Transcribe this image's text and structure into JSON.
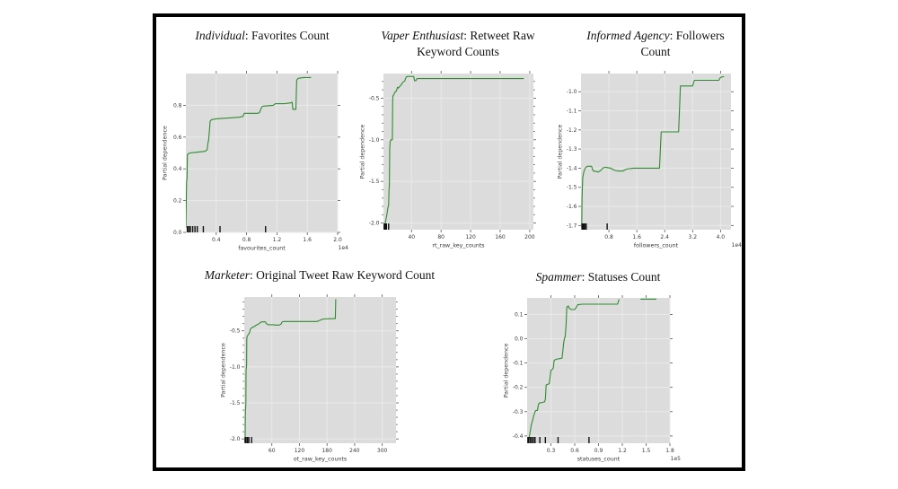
{
  "styles": {
    "plot_bg": "#dcdcdc",
    "grid_color": "#eaeaea",
    "line_color": "#2f8b2f",
    "tick_color": "#555555",
    "rug_color": "#111111"
  },
  "chart_data": [
    {
      "type": "line",
      "id": "individual-favorites-count",
      "title_italic": "Individual",
      "title_rest": ": Favorites Count",
      "title_line2": "",
      "xlabel": "favourites_count",
      "ylabel": "Partial dependence",
      "x_offset": "1e4",
      "xlim": [
        0,
        2.0
      ],
      "ylim": [
        0,
        1.0
      ],
      "xticks": [
        "0.4",
        "0.8",
        "1.2",
        "1.6",
        "2.0"
      ],
      "yticks": [
        "0.0",
        "0.2",
        "0.4",
        "0.6",
        "0.8"
      ],
      "grid": true,
      "legend": null,
      "points": [
        [
          0,
          0.03
        ],
        [
          0.01,
          0.32
        ],
        [
          0.015,
          0.34
        ],
        [
          0.02,
          0.49
        ],
        [
          0.05,
          0.5
        ],
        [
          0.15,
          0.505
        ],
        [
          0.25,
          0.51
        ],
        [
          0.28,
          0.52
        ],
        [
          0.29,
          0.56
        ],
        [
          0.3,
          0.58
        ],
        [
          0.31,
          0.64
        ],
        [
          0.32,
          0.7
        ],
        [
          0.34,
          0.71
        ],
        [
          0.4,
          0.715
        ],
        [
          0.55,
          0.72
        ],
        [
          0.7,
          0.725
        ],
        [
          0.75,
          0.73
        ],
        [
          0.77,
          0.75
        ],
        [
          0.95,
          0.75
        ],
        [
          0.97,
          0.755
        ],
        [
          1.0,
          0.79
        ],
        [
          1.02,
          0.795
        ],
        [
          1.15,
          0.8
        ],
        [
          1.18,
          0.81
        ],
        [
          1.3,
          0.81
        ],
        [
          1.38,
          0.815
        ],
        [
          1.4,
          0.82
        ],
        [
          1.41,
          0.775
        ],
        [
          1.45,
          0.775
        ],
        [
          1.46,
          0.96
        ],
        [
          1.48,
          0.97
        ],
        [
          1.55,
          0.975
        ],
        [
          1.65,
          0.975
        ]
      ],
      "segments": [],
      "rug": [
        0.02,
        0.04,
        0.06,
        0.09,
        0.12,
        0.15,
        0.23,
        0.45,
        1.05
      ]
    },
    {
      "type": "line",
      "id": "vaper-enthusiast-rt-raw-keyword",
      "title_italic": "Vaper Enthusiast",
      "title_rest": ": Retweet Raw",
      "title_line2": "Keyword Counts",
      "xlabel": "rt_raw_key_counts",
      "ylabel": "Partial dependence",
      "x_offset": "",
      "xlim": [
        2,
        205
      ],
      "ylim": [
        -2.08,
        -0.205
      ],
      "xticks": [
        "40",
        "80",
        "120",
        "160",
        "200"
      ],
      "yticks": [
        "-0.5",
        "-1.0",
        "-1.5",
        "-2.0"
      ],
      "y_minor_step": 0.1,
      "grid": true,
      "legend": null,
      "points": [
        [
          3,
          -2.06
        ],
        [
          4,
          -2.02
        ],
        [
          5,
          -1.97
        ],
        [
          6,
          -1.93
        ],
        [
          7,
          -1.88
        ],
        [
          8,
          -1.82
        ],
        [
          9,
          -1.78
        ],
        [
          9.5,
          -1.6
        ],
        [
          10,
          -1.55
        ],
        [
          10.5,
          -1.1
        ],
        [
          11,
          -1.03
        ],
        [
          12,
          -1.0
        ],
        [
          14,
          -1.0
        ],
        [
          14.5,
          -0.52
        ],
        [
          15,
          -0.47
        ],
        [
          16,
          -0.46
        ],
        [
          17,
          -0.44
        ],
        [
          18,
          -0.42
        ],
        [
          19,
          -0.42
        ],
        [
          20,
          -0.4
        ],
        [
          21,
          -0.37
        ],
        [
          22,
          -0.38
        ],
        [
          24,
          -0.36
        ],
        [
          26,
          -0.34
        ],
        [
          27,
          -0.33
        ],
        [
          28,
          -0.31
        ],
        [
          30,
          -0.3
        ],
        [
          31,
          -0.29
        ],
        [
          32,
          -0.26
        ],
        [
          33,
          -0.245
        ],
        [
          35,
          -0.24
        ],
        [
          43,
          -0.24
        ],
        [
          44,
          -0.29
        ],
        [
          46,
          -0.29
        ],
        [
          47,
          -0.27
        ],
        [
          48,
          -0.265
        ],
        [
          192,
          -0.265
        ]
      ],
      "segments": [],
      "rug": [
        3,
        4,
        5,
        6,
        9
      ]
    },
    {
      "type": "line",
      "id": "informed-agency-followers-count",
      "title_italic": "Informed Agency",
      "title_rest": ": Followers",
      "title_line2": "Count",
      "xlabel": "followers_count",
      "ylabel": "Partial dependence",
      "x_offset": "1e4",
      "xlim": [
        0,
        4.3
      ],
      "ylim": [
        -1.722,
        -0.905
      ],
      "xticks": [
        "0.8",
        "1.6",
        "2.4",
        "3.2",
        "4.0"
      ],
      "yticks": [
        "-1.0",
        "-1.1",
        "-1.2",
        "-1.3",
        "-1.4",
        "-1.5",
        "-1.6",
        "-1.7"
      ],
      "grid": true,
      "legend": null,
      "points": [
        [
          0.02,
          -1.71
        ],
        [
          0.03,
          -1.55
        ],
        [
          0.05,
          -1.45
        ],
        [
          0.08,
          -1.42
        ],
        [
          0.12,
          -1.4
        ],
        [
          0.18,
          -1.39
        ],
        [
          0.3,
          -1.39
        ],
        [
          0.35,
          -1.415
        ],
        [
          0.5,
          -1.42
        ],
        [
          0.58,
          -1.41
        ],
        [
          0.62,
          -1.4
        ],
        [
          0.7,
          -1.395
        ],
        [
          0.85,
          -1.4
        ],
        [
          0.95,
          -1.41
        ],
        [
          1.05,
          -1.415
        ],
        [
          1.2,
          -1.415
        ],
        [
          1.3,
          -1.405
        ],
        [
          1.5,
          -1.4
        ],
        [
          2.25,
          -1.4
        ],
        [
          2.3,
          -1.21
        ],
        [
          2.8,
          -1.21
        ],
        [
          2.85,
          -0.97
        ],
        [
          3.2,
          -0.97
        ],
        [
          3.25,
          -0.94
        ],
        [
          3.95,
          -0.94
        ],
        [
          4.0,
          -0.925
        ],
        [
          4.1,
          -0.92
        ]
      ],
      "segments": [],
      "rug": [
        0.03,
        0.05,
        0.08,
        0.11,
        0.15,
        0.75
      ]
    },
    {
      "type": "line",
      "id": "marketer-ot-raw-keyword-count",
      "title_italic": "Marketer",
      "title_rest": ": Original Tweet Raw Keyword Count",
      "title_line2": "",
      "xlabel": "ot_raw_key_counts",
      "ylabel": "Partial dependence",
      "x_offset": "",
      "xlim": [
        0,
        330
      ],
      "ylim": [
        -2.06,
        -0.03
      ],
      "xticks": [
        "60",
        "120",
        "180",
        "240",
        "300"
      ],
      "yticks": [
        "-0.5",
        "-1.0",
        "-1.5",
        "-2.0"
      ],
      "y_minor_step": 0.1,
      "grid": true,
      "legend": null,
      "points": [
        [
          1,
          -2.04
        ],
        [
          2,
          -2.0
        ],
        [
          2.5,
          -1.62
        ],
        [
          3,
          -1.58
        ],
        [
          3.5,
          -1.52
        ],
        [
          4,
          -1.05
        ],
        [
          5,
          -0.98
        ],
        [
          5.5,
          -0.62
        ],
        [
          6,
          -0.58
        ],
        [
          8,
          -0.56
        ],
        [
          10,
          -0.54
        ],
        [
          12,
          -0.52
        ],
        [
          13,
          -0.48
        ],
        [
          14,
          -0.47
        ],
        [
          16,
          -0.46
        ],
        [
          18,
          -0.45
        ],
        [
          22,
          -0.44
        ],
        [
          26,
          -0.42
        ],
        [
          30,
          -0.41
        ],
        [
          33,
          -0.395
        ],
        [
          36,
          -0.38
        ],
        [
          40,
          -0.375
        ],
        [
          46,
          -0.375
        ],
        [
          48,
          -0.4
        ],
        [
          52,
          -0.415
        ],
        [
          62,
          -0.415
        ],
        [
          70,
          -0.42
        ],
        [
          76,
          -0.42
        ],
        [
          80,
          -0.405
        ],
        [
          82,
          -0.38
        ],
        [
          85,
          -0.37
        ],
        [
          158,
          -0.37
        ],
        [
          162,
          -0.36
        ],
        [
          168,
          -0.345
        ],
        [
          172,
          -0.335
        ],
        [
          196,
          -0.33
        ],
        [
          198,
          -0.33
        ],
        [
          199,
          -0.06
        ]
      ],
      "segments": [],
      "rug": [
        2,
        4,
        7,
        10,
        16
      ]
    },
    {
      "type": "line",
      "id": "spammer-statuses-count",
      "title_italic": "Spammer",
      "title_rest": ": Statuses Count",
      "title_line2": "",
      "xlabel": "statuses_count",
      "ylabel": "Partial dependence",
      "x_offset": "1e5",
      "xlim": [
        0,
        1.8
      ],
      "ylim": [
        -0.43,
        0.168
      ],
      "xticks": [
        "0.3",
        "0.6",
        "0.9",
        "1.2",
        "1.5",
        "1.8"
      ],
      "yticks": [
        "0.1",
        "0.0",
        "-0.1",
        "-0.2",
        "-0.3",
        "-0.4"
      ],
      "grid": true,
      "legend": null,
      "points": [
        [
          0.01,
          -0.425
        ],
        [
          0.02,
          -0.42
        ],
        [
          0.03,
          -0.4
        ],
        [
          0.04,
          -0.38
        ],
        [
          0.05,
          -0.36
        ],
        [
          0.06,
          -0.345
        ],
        [
          0.07,
          -0.335
        ],
        [
          0.08,
          -0.32
        ],
        [
          0.09,
          -0.31
        ],
        [
          0.1,
          -0.3
        ],
        [
          0.11,
          -0.295
        ],
        [
          0.13,
          -0.295
        ],
        [
          0.14,
          -0.275
        ],
        [
          0.15,
          -0.265
        ],
        [
          0.22,
          -0.26
        ],
        [
          0.23,
          -0.25
        ],
        [
          0.24,
          -0.19
        ],
        [
          0.28,
          -0.185
        ],
        [
          0.3,
          -0.13
        ],
        [
          0.32,
          -0.125
        ],
        [
          0.33,
          -0.12
        ],
        [
          0.34,
          -0.09
        ],
        [
          0.36,
          -0.085
        ],
        [
          0.44,
          -0.08
        ],
        [
          0.45,
          -0.05
        ],
        [
          0.46,
          -0.02
        ],
        [
          0.47,
          0.0
        ],
        [
          0.48,
          0.01
        ],
        [
          0.49,
          0.05
        ],
        [
          0.5,
          0.13
        ],
        [
          0.52,
          0.135
        ],
        [
          0.53,
          0.125
        ],
        [
          0.56,
          0.12
        ],
        [
          0.6,
          0.12
        ],
        [
          0.62,
          0.13
        ],
        [
          0.64,
          0.14
        ],
        [
          0.7,
          0.142
        ],
        [
          1.14,
          0.142
        ],
        [
          1.16,
          0.162
        ]
      ],
      "segments": [
        [
          [
            1.43,
            0.163
          ],
          [
            1.63,
            0.163
          ]
        ]
      ],
      "rug": [
        0.01,
        0.02,
        0.04,
        0.06,
        0.08,
        0.1,
        0.16,
        0.23,
        0.39,
        0.78
      ]
    }
  ]
}
